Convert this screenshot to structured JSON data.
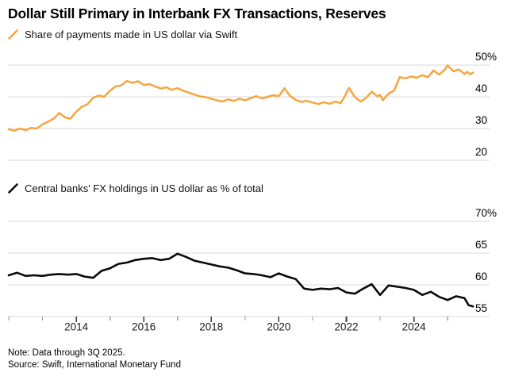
{
  "header": {
    "title": "Dollar Still Primary in Interbank FX Transactions, Reserves"
  },
  "colors": {
    "swift_line": "#F7A53F",
    "reserves_line": "#0a0a0a",
    "gridline": "#d9d9d9",
    "major_tick": "#3a3a3a",
    "minor_tick": "#9a9a9a",
    "axis_text": "#1a1a1a"
  },
  "chart_data": [
    {
      "type": "line",
      "title": "Share of payments made in US dollar via Swift",
      "legend_icon": "orange-slash",
      "color": "#F7A53F",
      "grid": true,
      "legend_position": "top-left",
      "ylim": [
        20,
        50
      ],
      "yticks": [
        50,
        40,
        30,
        20
      ],
      "ytick_labels": [
        "50%",
        "40",
        "30",
        "20"
      ],
      "xlim": [
        2012,
        2025.75
      ],
      "x": [
        2012.0,
        2012.17,
        2012.33,
        2012.5,
        2012.67,
        2012.83,
        2013.0,
        2013.17,
        2013.33,
        2013.5,
        2013.67,
        2013.83,
        2014.0,
        2014.17,
        2014.33,
        2014.5,
        2014.67,
        2014.83,
        2015.0,
        2015.17,
        2015.33,
        2015.5,
        2015.67,
        2015.83,
        2016.0,
        2016.17,
        2016.33,
        2016.5,
        2016.67,
        2016.83,
        2017.0,
        2017.17,
        2017.33,
        2017.5,
        2017.67,
        2017.83,
        2018.0,
        2018.17,
        2018.33,
        2018.5,
        2018.67,
        2018.83,
        2019.0,
        2019.17,
        2019.33,
        2019.5,
        2019.67,
        2019.83,
        2020.0,
        2020.17,
        2020.33,
        2020.5,
        2020.67,
        2020.83,
        2021.0,
        2021.17,
        2021.33,
        2021.5,
        2021.67,
        2021.83,
        2021.92,
        2022.08,
        2022.25,
        2022.42,
        2022.58,
        2022.75,
        2022.92,
        2023.0,
        2023.08,
        2023.25,
        2023.42,
        2023.58,
        2023.75,
        2023.92,
        2024.08,
        2024.25,
        2024.42,
        2024.58,
        2024.75,
        2024.92,
        2025.0,
        2025.17,
        2025.33,
        2025.5,
        2025.58,
        2025.67,
        2025.75
      ],
      "y": [
        29.8,
        29.3,
        30.0,
        29.5,
        30.2,
        30.0,
        31.3,
        32.2,
        33.1,
        34.9,
        33.5,
        33.1,
        35.3,
        36.9,
        37.6,
        39.7,
        40.4,
        40.0,
        41.9,
        43.3,
        43.6,
        45.0,
        44.4,
        44.9,
        43.7,
        44.0,
        43.3,
        42.6,
        43.0,
        42.2,
        42.7,
        41.9,
        41.3,
        40.7,
        40.1,
        39.9,
        39.4,
        38.9,
        38.5,
        39.2,
        38.7,
        39.4,
        38.9,
        39.6,
        40.2,
        39.5,
        40.0,
        40.5,
        40.2,
        42.7,
        40.3,
        39.0,
        38.4,
        38.7,
        38.2,
        37.7,
        38.3,
        37.8,
        38.5,
        38.0,
        39.5,
        42.8,
        39.9,
        38.5,
        39.6,
        41.6,
        40.1,
        40.6,
        38.9,
        41.0,
        42.0,
        46.2,
        45.8,
        46.4,
        46.0,
        46.8,
        46.2,
        48.3,
        47.0,
        48.6,
        49.9,
        48.0,
        48.6,
        47.2,
        47.9,
        47.1,
        47.6
      ]
    },
    {
      "type": "line",
      "title": "Central banks' FX holdings in US dollar as % of total",
      "legend_icon": "black-slash",
      "color": "#0a0a0a",
      "grid": true,
      "legend_position": "top-left",
      "ylim": [
        55,
        70
      ],
      "yticks": [
        70,
        65,
        60,
        55
      ],
      "ytick_labels": [
        "70%",
        "65",
        "60",
        "55"
      ],
      "xlim": [
        2012,
        2025.75
      ],
      "xticks": [
        2012,
        2013,
        2014,
        2015,
        2016,
        2017,
        2018,
        2019,
        2020,
        2021,
        2022,
        2023,
        2024,
        2025
      ],
      "xtick_label_years": [
        2014,
        2016,
        2018,
        2020,
        2022,
        2024
      ],
      "xtick_labels": [
        "2014",
        "2016",
        "2018",
        "2020",
        "2022",
        "2024"
      ],
      "x": [
        2012.0,
        2012.25,
        2012.5,
        2012.75,
        2013.0,
        2013.25,
        2013.5,
        2013.75,
        2014.0,
        2014.25,
        2014.5,
        2014.75,
        2015.0,
        2015.25,
        2015.5,
        2015.75,
        2016.0,
        2016.25,
        2016.5,
        2016.75,
        2017.0,
        2017.25,
        2017.5,
        2017.75,
        2018.0,
        2018.25,
        2018.5,
        2018.75,
        2019.0,
        2019.25,
        2019.5,
        2019.75,
        2020.0,
        2020.25,
        2020.5,
        2020.75,
        2021.0,
        2021.25,
        2021.5,
        2021.75,
        2022.0,
        2022.25,
        2022.5,
        2022.75,
        2023.0,
        2023.25,
        2023.5,
        2023.75,
        2024.0,
        2024.25,
        2024.5,
        2024.75,
        2025.0,
        2025.25,
        2025.5,
        2025.62,
        2025.75
      ],
      "y": [
        61.5,
        61.9,
        61.4,
        61.5,
        61.4,
        61.6,
        61.7,
        61.6,
        61.7,
        61.3,
        61.1,
        62.2,
        62.6,
        63.3,
        63.5,
        63.9,
        64.1,
        64.2,
        63.9,
        64.1,
        64.9,
        64.4,
        63.8,
        63.5,
        63.2,
        62.9,
        62.7,
        62.3,
        61.8,
        61.7,
        61.5,
        61.2,
        61.8,
        61.3,
        60.9,
        59.4,
        59.2,
        59.4,
        59.3,
        59.5,
        58.8,
        58.6,
        59.4,
        60.1,
        58.4,
        59.9,
        59.7,
        59.5,
        59.2,
        58.4,
        58.9,
        58.1,
        57.6,
        58.2,
        57.9,
        56.8,
        56.6
      ]
    }
  ],
  "footer": {
    "note": "Note: Data through 3Q 2025.",
    "source": "Source: Swift, International Monetary Fund"
  }
}
